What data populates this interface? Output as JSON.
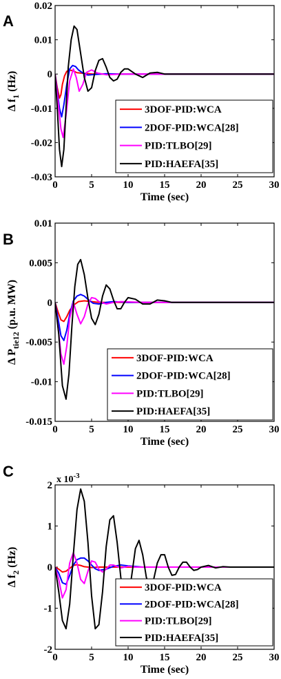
{
  "colors": {
    "3DOF-PID:WCA": "#ff0000",
    "2DOF-PID:WCA[28]": "#0000ff",
    "PID:TLBO[29]": "#ff00ff",
    "PID:HAEFA[35]": "#000000"
  },
  "chart_data": [
    {
      "panel": "A",
      "type": "line",
      "ylabel_main": "Δ f",
      "ylabel_sub": "1",
      "ylabel_tail": " (Hz)",
      "xlabel": "Time (sec)",
      "xlim": [
        0,
        30
      ],
      "ylim": [
        -0.03,
        0.02
      ],
      "xticks": [
        "0",
        "5",
        "10",
        "15",
        "20",
        "25",
        "30"
      ],
      "xtick_values": [
        0,
        5,
        10,
        15,
        20,
        25,
        30
      ],
      "yticks": [
        "-0.03",
        "-0.02",
        "-0.01",
        "0",
        "0.01",
        "0.02"
      ],
      "ytick_values": [
        -0.03,
        -0.02,
        -0.01,
        0,
        0.01,
        0.02
      ],
      "exponent": "",
      "legend_position": "bottom-right",
      "series": [
        {
          "name": "3DOF-PID:WCA",
          "x": [
            0,
            0.3,
            0.6,
            0.8,
            1.0,
            1.3,
            1.6,
            2.0,
            2.5,
            3.0,
            4.0,
            5.0,
            7.0,
            10.0,
            30.0
          ],
          "y": [
            0,
            -0.004,
            -0.007,
            -0.006,
            -0.003,
            -0.0005,
            0.0008,
            0.0012,
            0.0009,
            0.0004,
            0.0002,
            5e-05,
            0,
            0,
            0
          ]
        },
        {
          "name": "2DOF-PID:WCA[28]",
          "x": [
            0,
            0.3,
            0.6,
            0.9,
            1.2,
            1.6,
            2.0,
            2.4,
            2.8,
            3.2,
            3.8,
            4.5,
            5.5,
            7.0,
            9.0,
            12.0,
            30.0
          ],
          "y": [
            0,
            -0.005,
            -0.01,
            -0.0125,
            -0.009,
            -0.003,
            0.0015,
            0.0025,
            0.0022,
            0.0012,
            0.0003,
            -0.0003,
            -0.0001,
            0.0001,
            0,
            0,
            0
          ]
        },
        {
          "name": "PID:TLBO[29]",
          "x": [
            0,
            0.4,
            0.8,
            1.1,
            1.5,
            2.0,
            2.5,
            2.9,
            3.3,
            3.8,
            4.3,
            5.0,
            5.8,
            7.0,
            9.0,
            12.0,
            30.0
          ],
          "y": [
            0,
            -0.008,
            -0.016,
            -0.0185,
            -0.012,
            -0.002,
            0.0015,
            -0.001,
            -0.005,
            -0.003,
            0.0005,
            0.0012,
            0.0003,
            -0.0002,
            0,
            0,
            0
          ]
        },
        {
          "name": "PID:HAEFA[35]",
          "x": [
            0,
            0.3,
            0.6,
            0.9,
            1.2,
            1.5,
            1.8,
            2.2,
            2.6,
            3.0,
            3.5,
            4.0,
            4.5,
            5.0,
            5.5,
            6.0,
            6.5,
            7.0,
            7.5,
            8.0,
            8.5,
            9.0,
            9.5,
            10.0,
            11.0,
            12.0,
            13.0,
            14.0,
            15.0,
            17.0,
            20.0,
            30.0
          ],
          "y": [
            0,
            -0.01,
            -0.022,
            -0.027,
            -0.022,
            -0.01,
            0.002,
            0.01,
            0.014,
            0.013,
            0.006,
            -0.001,
            -0.005,
            -0.004,
            0.001,
            0.004,
            0.0045,
            0.002,
            -0.001,
            -0.002,
            -0.0015,
            0.0005,
            0.0015,
            0.0015,
            0,
            -0.001,
            0.0003,
            0.0005,
            0,
            0,
            0,
            0
          ]
        }
      ]
    },
    {
      "panel": "B",
      "type": "line",
      "ylabel_main": "Δ P",
      "ylabel_sub": "tie12",
      "ylabel_tail": " (p.u. MW)",
      "xlabel": "Time (sec)",
      "xlim": [
        0,
        30
      ],
      "ylim": [
        -0.015,
        0.01
      ],
      "xticks": [
        "0",
        "5",
        "10",
        "15",
        "20",
        "25",
        "30"
      ],
      "xtick_values": [
        0,
        5,
        10,
        15,
        20,
        25,
        30
      ],
      "yticks": [
        "-0.015",
        "-0.01",
        "-0.005",
        "0",
        "0.005",
        "0.01"
      ],
      "ytick_values": [
        -0.015,
        -0.01,
        -0.005,
        0,
        0.005,
        0.01
      ],
      "exponent": "",
      "legend_position": "bottom-right",
      "series": [
        {
          "name": "3DOF-PID:WCA",
          "x": [
            0,
            0.4,
            0.8,
            1.2,
            1.6,
            2.0,
            2.6,
            3.2,
            4.0,
            5.0,
            6.0,
            8.0,
            10.0,
            30.0
          ],
          "y": [
            0,
            -0.0012,
            -0.0022,
            -0.0024,
            -0.0018,
            -0.001,
            -0.0003,
            0.0001,
            0.0002,
            0.0001,
            0,
            0,
            0,
            0
          ]
        },
        {
          "name": "2DOF-PID:WCA[28]",
          "x": [
            0,
            0.4,
            0.8,
            1.2,
            1.6,
            2.0,
            2.5,
            3.0,
            3.5,
            4.0,
            4.6,
            5.2,
            6.0,
            7.0,
            8.0,
            10.0,
            30.0
          ],
          "y": [
            0,
            -0.002,
            -0.0042,
            -0.0048,
            -0.0035,
            -0.0015,
            0.0002,
            0.0008,
            0.001,
            0.0008,
            0.0003,
            -0.0001,
            -0.0002,
            0,
            0.0001,
            0,
            0
          ]
        },
        {
          "name": "PID:TLBO[29]",
          "x": [
            0,
            0.4,
            0.8,
            1.2,
            1.6,
            2.0,
            2.5,
            3.0,
            3.5,
            4.0,
            4.5,
            5.0,
            5.5,
            6.0,
            7.0,
            8.0,
            9.0,
            12.0,
            30.0
          ],
          "y": [
            0,
            -0.003,
            -0.0065,
            -0.0078,
            -0.0055,
            -0.002,
            0,
            -0.0015,
            -0.0027,
            -0.0018,
            -0.0002,
            0.0006,
            0.0005,
            0.0001,
            -0.0002,
            0,
            0.0001,
            0,
            0
          ]
        },
        {
          "name": "PID:HAEFA[35]",
          "x": [
            0,
            0.5,
            1.0,
            1.5,
            1.9,
            2.3,
            2.7,
            3.1,
            3.5,
            4.0,
            4.5,
            5.0,
            5.5,
            6.0,
            6.5,
            7.0,
            7.5,
            8.0,
            8.5,
            9.0,
            9.5,
            10.0,
            11.0,
            12.0,
            13.0,
            14.0,
            15.0,
            16.0,
            18.0,
            20.0,
            30.0
          ],
          "y": [
            0,
            -0.004,
            -0.0105,
            -0.0122,
            -0.009,
            -0.003,
            0.002,
            0.0048,
            0.0054,
            0.0035,
            0.0005,
            -0.002,
            -0.0028,
            -0.0015,
            0.0008,
            0.0022,
            0.0017,
            0.0003,
            -0.0008,
            -0.0008,
            0,
            0.0006,
            0.0004,
            -0.0002,
            -0.0002,
            0.0003,
            0.0002,
            0,
            0,
            0,
            0
          ]
        }
      ]
    },
    {
      "panel": "C",
      "type": "line",
      "ylabel_main": "Δ f",
      "ylabel_sub": "2",
      "ylabel_tail": " (Hz)",
      "xlabel": "Time (sec)",
      "xlim": [
        0,
        30
      ],
      "ylim": [
        -2,
        2
      ],
      "xticks": [
        "0",
        "5",
        "10",
        "15",
        "20",
        "25",
        "30"
      ],
      "xtick_values": [
        0,
        5,
        10,
        15,
        20,
        25,
        30
      ],
      "yticks": [
        "-2",
        "-1",
        "0",
        "1",
        "2"
      ],
      "ytick_values": [
        -2,
        -1,
        0,
        1,
        2
      ],
      "exponent": "x 10",
      "exponent_power": "-3",
      "legend_position": "bottom-right",
      "series": [
        {
          "name": "3DOF-PID:WCA",
          "x": [
            0,
            0.5,
            1.0,
            1.5,
            2.0,
            2.5,
            3.0,
            3.5,
            4.0,
            5.0,
            6.0,
            8.0,
            10.0,
            30.0
          ],
          "y": [
            0,
            -0.05,
            -0.12,
            -0.1,
            -0.03,
            0.04,
            0.06,
            0.04,
            0.01,
            -0.01,
            0,
            0,
            0,
            0
          ]
        },
        {
          "name": "2DOF-PID:WCA[28]",
          "x": [
            0,
            0.5,
            1.0,
            1.5,
            2.0,
            2.5,
            3.0,
            3.5,
            4.0,
            4.5,
            5.0,
            5.5,
            6.0,
            7.0,
            8.0,
            9.0,
            10.0,
            12.0,
            15.0,
            30.0
          ],
          "y": [
            0,
            -0.15,
            -0.38,
            -0.42,
            -0.2,
            0.05,
            0.18,
            0.22,
            0.22,
            0.15,
            0.05,
            -0.04,
            -0.08,
            -0.05,
            0.02,
            0.05,
            0.03,
            0,
            0,
            0
          ]
        },
        {
          "name": "PID:TLBO[29]",
          "x": [
            0,
            0.5,
            1.0,
            1.5,
            2.0,
            2.5,
            3.0,
            3.5,
            4.0,
            4.5,
            5.0,
            5.5,
            6.0,
            6.5,
            7.0,
            7.5,
            8.0,
            9.0,
            10.0,
            11.0,
            12.0,
            14.0,
            17.0,
            30.0
          ],
          "y": [
            0,
            -0.3,
            -0.75,
            -0.55,
            0.1,
            0.35,
            0.1,
            -0.3,
            -0.4,
            -0.1,
            0.15,
            0.12,
            -0.05,
            -0.12,
            -0.05,
            0.05,
            0.05,
            -0.02,
            0.02,
            0,
            0,
            0,
            0,
            0
          ]
        },
        {
          "name": "PID:HAEFA[35]",
          "x": [
            0,
            0.5,
            1.0,
            1.5,
            2.0,
            2.5,
            3.0,
            3.5,
            4.0,
            4.5,
            5.0,
            5.5,
            6.0,
            6.5,
            7.0,
            7.5,
            8.0,
            8.5,
            9.0,
            9.5,
            10.0,
            10.5,
            11.0,
            11.5,
            12.0,
            12.5,
            13.0,
            13.5,
            14.0,
            14.5,
            15.0,
            15.5,
            16.0,
            16.5,
            17.0,
            17.5,
            18.0,
            18.5,
            19.0,
            19.5,
            20.0,
            21.0,
            22.0,
            23.0,
            24.0,
            30.0
          ],
          "y": [
            0,
            -0.6,
            -1.3,
            -1.5,
            -0.9,
            0.3,
            1.4,
            1.9,
            1.6,
            0.6,
            -0.7,
            -1.5,
            -1.4,
            -0.6,
            0.5,
            1.15,
            1.25,
            0.6,
            -0.25,
            -0.75,
            -0.8,
            -0.2,
            0.45,
            0.65,
            0.3,
            -0.25,
            -0.5,
            -0.3,
            0.1,
            0.3,
            0.3,
            0,
            -0.2,
            -0.18,
            0,
            0.12,
            0.12,
            0,
            -0.08,
            -0.06,
            0,
            0.04,
            -0.02,
            0.01,
            0,
            0
          ]
        }
      ]
    }
  ]
}
